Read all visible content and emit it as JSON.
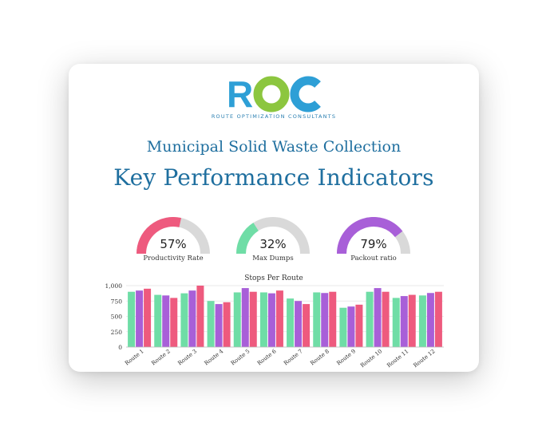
{
  "brand": {
    "logo_text": "ROC",
    "tagline": "ROUTE OPTIMIZATION CONSULTANTS",
    "colors": {
      "r": "#2e9fd6",
      "o": "#8cc63f",
      "c": "#2e9fd6"
    }
  },
  "header": {
    "subtitle": "Municipal Solid Waste Collection",
    "title": "Key Performance Indicators"
  },
  "gauges": [
    {
      "value": 57,
      "display": "57%",
      "label": "Productivity Rate",
      "color": "#ee5a7e"
    },
    {
      "value": 32,
      "display": "32%",
      "label": "Max Dumps",
      "color": "#6fdda6"
    },
    {
      "value": 79,
      "display": "79%",
      "label": "Packout ratio",
      "color": "#a85fd8"
    }
  ],
  "chart_data": {
    "type": "bar",
    "title": "Stops Per Route",
    "categories": [
      "Route 1",
      "Route 2",
      "Route 3",
      "Route 4",
      "Route 5",
      "Route 6",
      "Route 7",
      "Route 8",
      "Route 9",
      "Route 10",
      "Route 11",
      "Route 12"
    ],
    "series": [
      {
        "color": "#6fdda6",
        "values": [
          900,
          850,
          875,
          750,
          890,
          890,
          790,
          890,
          640,
          900,
          800,
          840
        ]
      },
      {
        "color": "#a85fd8",
        "values": [
          920,
          840,
          920,
          700,
          960,
          875,
          750,
          880,
          660,
          960,
          830,
          880
        ]
      },
      {
        "color": "#ee5a7e",
        "values": [
          950,
          800,
          1000,
          730,
          900,
          920,
          700,
          900,
          690,
          900,
          850,
          900
        ]
      }
    ],
    "yticks": [
      "0",
      "250",
      "500",
      "750",
      "1,000"
    ],
    "ylim": [
      0,
      1000
    ],
    "grid": true,
    "legend": "none"
  }
}
